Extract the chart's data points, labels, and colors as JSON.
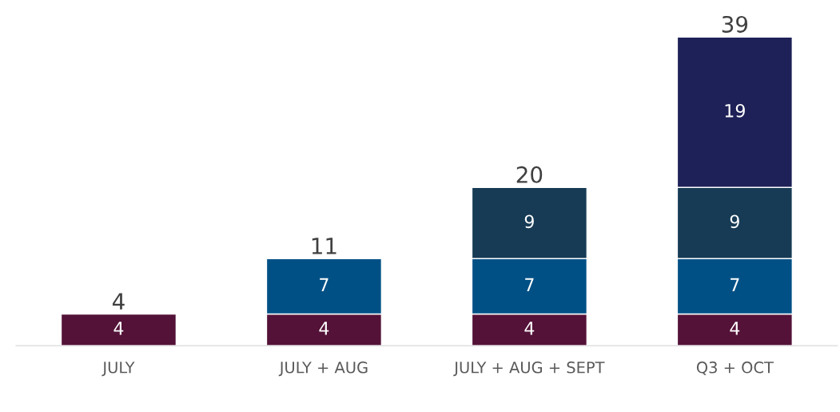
{
  "chart_data": {
    "type": "bar",
    "stacked": true,
    "data_labels": true,
    "categories": [
      "JULY",
      "JULY + AUG",
      "JULY + AUG + SEPT",
      "Q3 + OCT"
    ],
    "series": [
      {
        "color": "#541238",
        "values": [
          4,
          4,
          4,
          4
        ]
      },
      {
        "color": "#005086",
        "values": [
          null,
          7,
          7,
          7
        ]
      },
      {
        "color": "#173b55",
        "values": [
          null,
          null,
          9,
          9
        ]
      },
      {
        "color": "#1e2157",
        "values": [
          null,
          null,
          null,
          19
        ]
      }
    ],
    "totals": [
      "4",
      "11",
      "20",
      "39"
    ],
    "grid": false,
    "legend": false
  }
}
